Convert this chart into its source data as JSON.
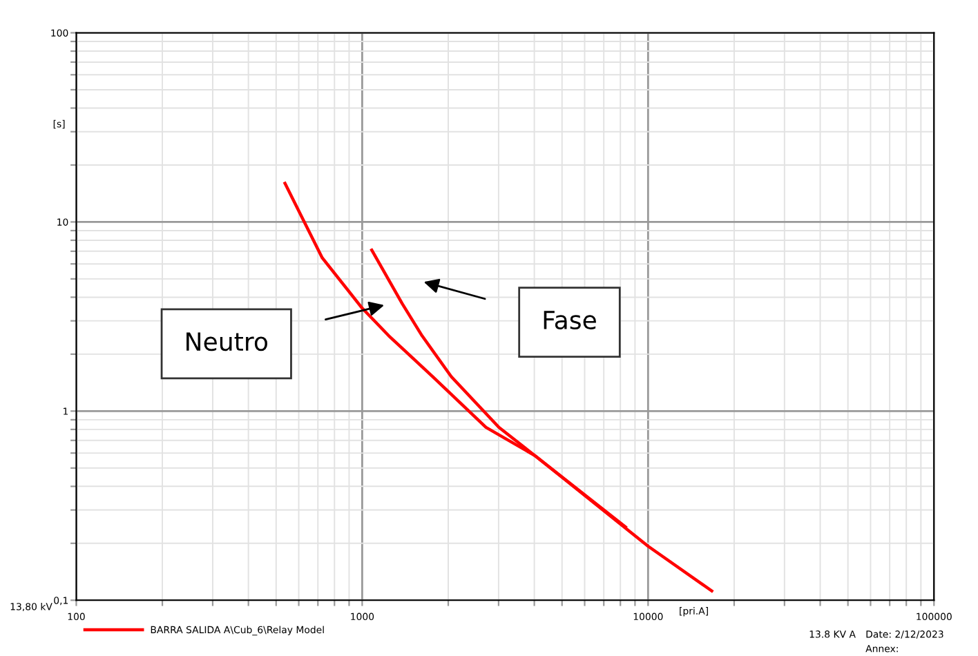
{
  "chart_data": {
    "type": "line",
    "xlabel": "[pri.A]",
    "ylabel": "[s]",
    "log": "xy",
    "grid": true,
    "legend": "bottom",
    "marker": "none",
    "line_style": "solid",
    "xlim": [
      100,
      100000
    ],
    "ylim": [
      0.1,
      100
    ],
    "xticks": [
      100,
      {
        "value": 200,
        "label": null
      },
      {
        "value": 300,
        "label": null
      },
      {
        "value": 400,
        "label": null
      },
      {
        "value": 500,
        "label": null
      },
      {
        "value": 600,
        "label": null
      },
      {
        "value": 700,
        "label": null
      },
      {
        "value": 800,
        "label": null
      },
      {
        "value": 900,
        "label": null
      },
      1000,
      {
        "value": 2000,
        "label": null
      },
      {
        "value": 3000,
        "label": null
      },
      {
        "value": 4000,
        "label": null
      },
      {
        "value": 5000,
        "label": null
      },
      {
        "value": 6000,
        "label": null
      },
      {
        "value": 7000,
        "label": null
      },
      {
        "value": 8000,
        "label": null
      },
      {
        "value": 9000,
        "label": null
      },
      10000,
      {
        "value": 20000,
        "label": null
      },
      {
        "value": 30000,
        "label": null
      },
      {
        "value": 40000,
        "label": null
      },
      {
        "value": 50000,
        "label": null
      },
      {
        "value": 60000,
        "label": null
      },
      {
        "value": 70000,
        "label": null
      },
      {
        "value": 80000,
        "label": null
      },
      {
        "value": 90000,
        "label": null
      },
      100000
    ],
    "yticks": [
      {
        "value": 0.1,
        "label": "0,1"
      },
      {
        "value": 0.2,
        "label": null
      },
      {
        "value": 0.3,
        "label": null
      },
      {
        "value": 0.4,
        "label": null
      },
      {
        "value": 0.5,
        "label": null
      },
      {
        "value": 0.6,
        "label": null
      },
      {
        "value": 0.7,
        "label": null
      },
      {
        "value": 0.8,
        "label": null
      },
      {
        "value": 0.9,
        "label": null
      },
      1,
      {
        "value": 2,
        "label": null
      },
      {
        "value": 3,
        "label": null
      },
      {
        "value": 4,
        "label": null
      },
      {
        "value": 5,
        "label": null
      },
      {
        "value": 6,
        "label": null
      },
      {
        "value": 7,
        "label": null
      },
      {
        "value": 8,
        "label": null
      },
      {
        "value": 9,
        "label": null
      },
      10,
      {
        "value": 20,
        "label": null
      },
      {
        "value": 30,
        "label": null
      },
      {
        "value": 40,
        "label": null
      },
      {
        "value": 50,
        "label": null
      },
      {
        "value": 60,
        "label": null
      },
      {
        "value": 70,
        "label": null
      },
      {
        "value": 80,
        "label": null
      },
      {
        "value": 90,
        "label": null
      },
      100
    ],
    "series": [
      {
        "name": "BARRA SALIDA A\\Cub_6\\Relay Model",
        "color": "#ff0000",
        "x": [
          537,
          725,
          1000,
          1239,
          1766,
          2710,
          4030,
          10000,
          16700
        ],
        "values": [
          16,
          6.46,
          3.5,
          2.5,
          1.52,
          0.82,
          0.58,
          0.193,
          0.112
        ]
      },
      {
        "color": "#ff0000",
        "x": [
          1080,
          1380,
          1620,
          2050,
          3010,
          4030,
          8340
        ],
        "values": [
          7.1,
          3.7,
          2.5,
          1.52,
          0.82,
          0.58,
          0.244
        ]
      }
    ],
    "annotations": [
      "Neutro",
      "Fase",
      "13,80 kV",
      "13.8 KV A",
      "Date: 2/12/2023",
      "Annex:"
    ]
  }
}
